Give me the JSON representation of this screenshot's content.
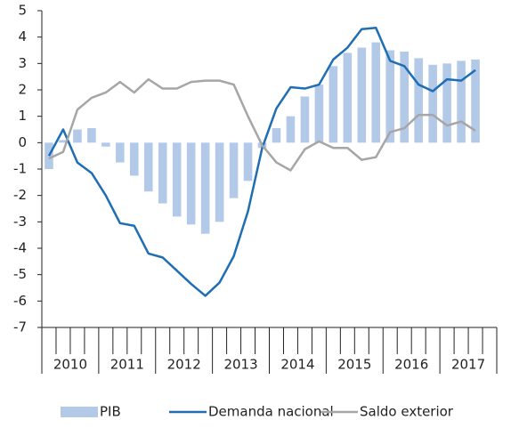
{
  "chart_data": {
    "type": "bar-line",
    "categories": [
      null,
      null,
      null,
      null,
      null,
      null,
      null,
      null,
      null,
      null,
      null,
      null,
      null,
      null,
      null,
      null,
      null,
      null,
      null,
      null,
      null,
      null,
      null,
      null,
      null,
      null,
      null,
      null,
      null,
      null,
      null,
      null
    ],
    "year_labels": [
      "2010",
      "2011",
      "2012",
      "2013",
      "2014",
      "2015",
      "2016",
      "2017"
    ],
    "series": [
      {
        "name": "PIB",
        "type": "bar",
        "color": "#b3c9e8",
        "values": [
          -1.0,
          0.1,
          0.5,
          0.55,
          -0.15,
          -0.75,
          -1.25,
          -1.85,
          -2.3,
          -2.8,
          -3.1,
          -3.45,
          -3.0,
          -2.1,
          -1.45,
          -0.2,
          0.55,
          1.0,
          1.75,
          2.2,
          2.9,
          3.4,
          3.6,
          3.8,
          3.5,
          3.45,
          3.2,
          2.95,
          3.0,
          3.1,
          3.15,
          null
        ]
      },
      {
        "name": "Demanda nacional",
        "type": "line",
        "color": "#1f6eb3",
        "values": [
          -0.5,
          0.5,
          -0.75,
          -1.15,
          -2.0,
          -3.05,
          -3.15,
          -4.2,
          -4.35,
          -4.85,
          -5.35,
          -5.8,
          -5.3,
          -4.3,
          -2.6,
          -0.2,
          1.3,
          2.1,
          2.05,
          2.2,
          3.15,
          3.6,
          4.3,
          4.35,
          3.1,
          2.9,
          2.2,
          1.95,
          2.4,
          2.35,
          2.75,
          null
        ]
      },
      {
        "name": "Saldo exterior",
        "type": "line",
        "color": "#a6a6a6",
        "values": [
          -0.6,
          -0.35,
          1.25,
          1.7,
          1.9,
          2.3,
          1.9,
          2.4,
          2.05,
          2.05,
          2.3,
          2.35,
          2.35,
          2.2,
          1.0,
          -0.1,
          -0.75,
          -1.05,
          -0.25,
          0.05,
          -0.2,
          -0.2,
          -0.65,
          -0.55,
          0.4,
          0.55,
          1.05,
          1.05,
          0.65,
          0.8,
          0.45,
          null
        ]
      }
    ],
    "ylim": [
      -7,
      5
    ],
    "yticks": [
      -7,
      -6,
      -5,
      -4,
      -3,
      -2,
      -1,
      0,
      1,
      2,
      3,
      4,
      5
    ]
  }
}
